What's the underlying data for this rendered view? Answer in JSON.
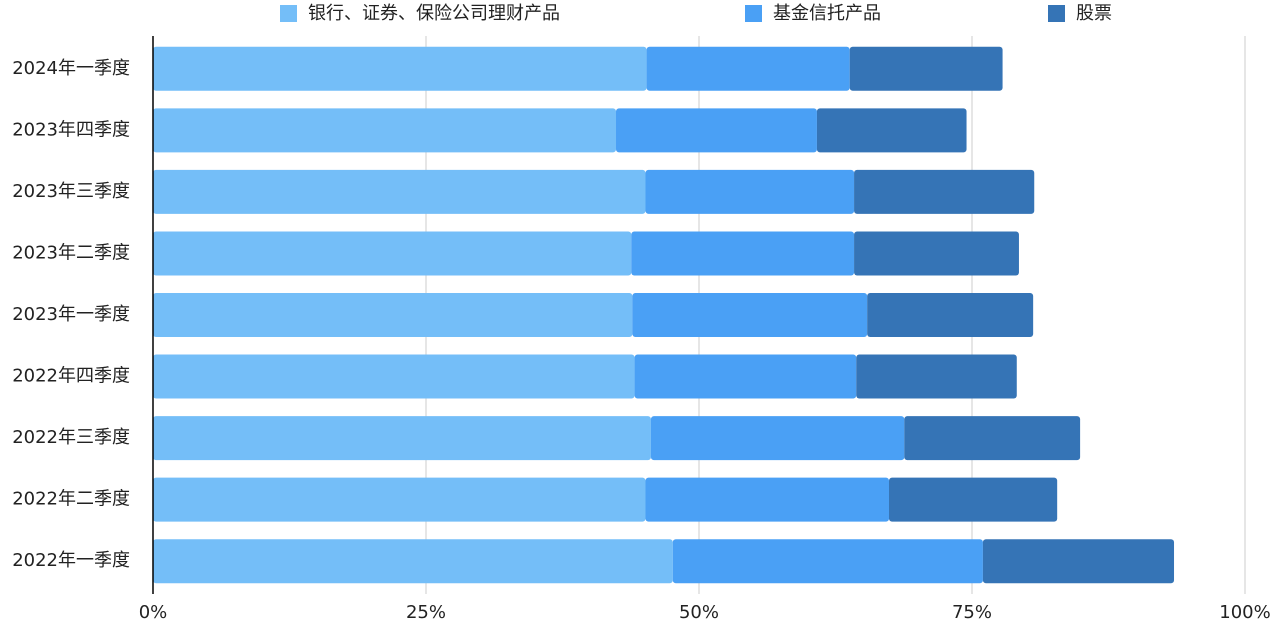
{
  "chart_data": {
    "type": "stacked-bar-horizontal",
    "categories": [
      "2024年一季度",
      "2023年四季度",
      "2023年三季度",
      "2023年二季度",
      "2023年一季度",
      "2022年四季度",
      "2022年三季度",
      "2022年二季度",
      "2022年一季度"
    ],
    "series": [
      {
        "name": "银行、证券、保险公司理财产品",
        "color": "#74bef8",
        "values": [
          45.2,
          42.4,
          45.1,
          43.8,
          43.9,
          44.1,
          45.6,
          45.1,
          47.6
        ]
      },
      {
        "name": "基金信托产品",
        "color": "#4aa0f5",
        "values": [
          18.6,
          18.4,
          19.1,
          20.4,
          21.5,
          20.3,
          23.2,
          22.3,
          28.4
        ]
      },
      {
        "name": "股票",
        "color": "#3574b6",
        "values": [
          14.0,
          13.7,
          16.5,
          15.1,
          15.2,
          14.7,
          16.1,
          15.4,
          17.5
        ]
      }
    ],
    "xlim": [
      0,
      100
    ],
    "xticks": [
      {
        "value": 0,
        "label": "0%"
      },
      {
        "value": 25,
        "label": "25%"
      },
      {
        "value": 50,
        "label": "50%"
      },
      {
        "value": 75,
        "label": "75%"
      },
      {
        "value": 100,
        "label": "100%"
      }
    ],
    "grid": true,
    "legend": "top"
  }
}
